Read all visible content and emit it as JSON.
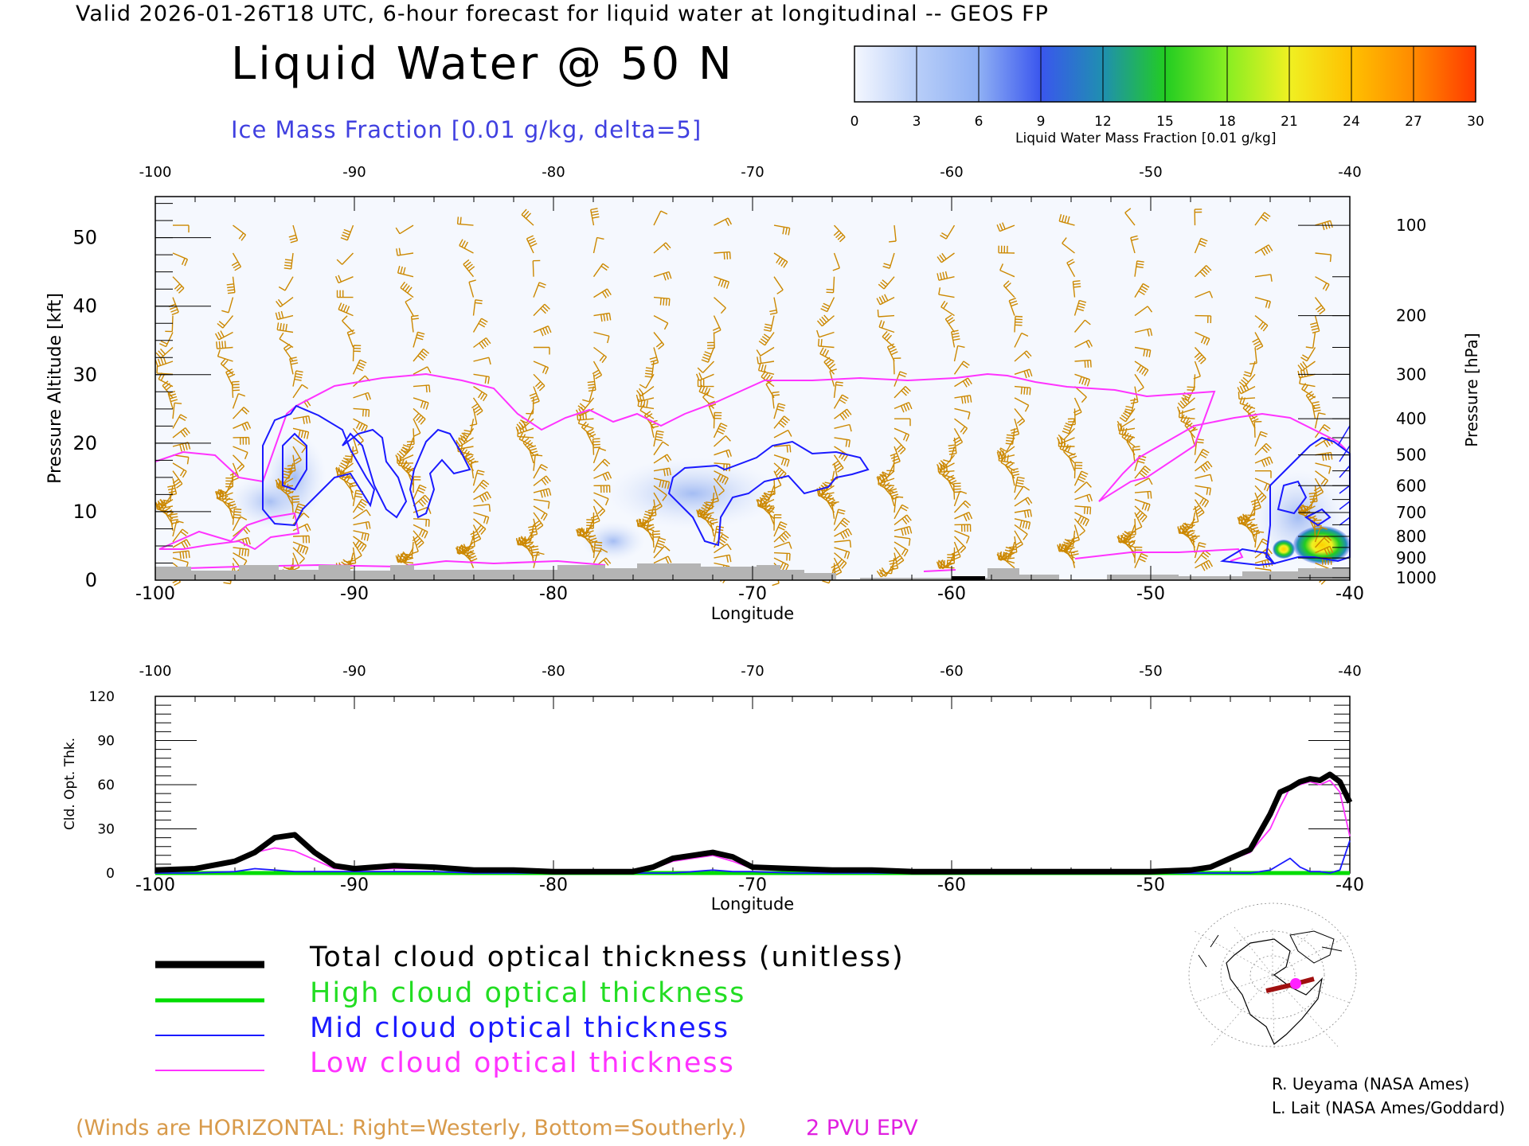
{
  "header": {
    "valid_line": "Valid 2026-01-26T18 UTC, 6-hour forecast for liquid water at longitudinal -- GEOS FP",
    "title": "Liquid Water @ 50 N",
    "subtitle": "Ice Mass Fraction [0.01 g/kg, delta=5]"
  },
  "colorbar": {
    "label": "Liquid Water Mass Fraction [0.01 g/kg]",
    "ticks": [
      "0",
      "3",
      "6",
      "9",
      "12",
      "15",
      "18",
      "21",
      "24",
      "27",
      "30"
    ],
    "colors": [
      "#f4f7ff",
      "#b8cef8",
      "#8fb0f4",
      "#3a56ee",
      "#1f8fb0",
      "#22cc22",
      "#88ee22",
      "#f0f022",
      "#ffc000",
      "#ff8a00",
      "#ff3a00"
    ]
  },
  "chart_data": [
    {
      "type": "heatmap",
      "title": "Liquid Water @ 50 N",
      "xlabel": "Longitude",
      "ylabel": "Pressure Altitude [kft]",
      "ylabel_right": "Pressure [hPa]",
      "xlim": [
        -100,
        -40
      ],
      "ylim": [
        0,
        56
      ],
      "x_ticks": [
        "-100",
        "-90",
        "-80",
        "-70",
        "-60",
        "-50",
        "-40"
      ],
      "y_ticks_left": [
        "0",
        "10",
        "20",
        "30",
        "40",
        "50"
      ],
      "y_ticks_right": [
        "100",
        "200",
        "300",
        "400",
        "500",
        "600",
        "700",
        "800",
        "900",
        "1000"
      ],
      "pressure_levels_hpa": [
        100,
        200,
        300,
        400,
        500,
        600,
        700,
        800,
        900,
        1000
      ],
      "liquid_water_max_region": {
        "lon": [
          -44,
          -40
        ],
        "alt_kft": [
          3,
          8
        ],
        "value_approx": 22
      },
      "ice_contour_color": "#1a1aff",
      "epv_contour_color": "#ff33ff",
      "wind_barb_color": "#cc8800",
      "terrain_color": "#b4b4b4"
    },
    {
      "type": "line",
      "xlabel": "Longitude",
      "ylabel": "Cld. Opt. Thk.",
      "xlim": [
        -100,
        -40
      ],
      "ylim": [
        0,
        120
      ],
      "x_ticks": [
        "-100",
        "-90",
        "-80",
        "-70",
        "-60",
        "-50",
        "-40"
      ],
      "y_ticks": [
        "0",
        "30",
        "60",
        "90",
        "120"
      ],
      "x": [
        -100,
        -98,
        -96,
        -95,
        -94,
        -93,
        -92,
        -91,
        -90,
        -88,
        -86,
        -84,
        -82,
        -80,
        -78,
        -76,
        -75,
        -74,
        -73,
        -72,
        -71,
        -70,
        -68,
        -66,
        -64,
        -62,
        -60,
        -58,
        -56,
        -54,
        -52,
        -50,
        -48,
        -47,
        -46,
        -45,
        -44,
        -43.5,
        -43,
        -42.5,
        -42,
        -41.5,
        -41,
        -40.5,
        -40
      ],
      "series": [
        {
          "name": "Total cloud optical thickness (unitless)",
          "color": "#000000",
          "values": [
            2,
            3,
            8,
            14,
            24,
            26,
            14,
            5,
            3,
            5,
            4,
            2,
            2,
            1,
            1,
            1,
            4,
            10,
            12,
            14,
            11,
            4,
            3,
            2,
            2,
            1,
            1,
            1,
            1,
            1,
            1,
            1,
            2,
            4,
            10,
            16,
            40,
            55,
            58,
            62,
            64,
            63,
            67,
            62,
            48
          ]
        },
        {
          "name": "High cloud optical thickness",
          "color": "#00dd00",
          "values": [
            0,
            0,
            0,
            0,
            0,
            0,
            0,
            0,
            0,
            0,
            0,
            0,
            0,
            0,
            0,
            0,
            0,
            0,
            0,
            0,
            0,
            0,
            0,
            0,
            0,
            0,
            0,
            0,
            0,
            0,
            0,
            0,
            0,
            0,
            0,
            0,
            0,
            0,
            0,
            0,
            0,
            0,
            0,
            0,
            0
          ]
        },
        {
          "name": "Mid cloud optical thickness",
          "color": "#1a1aff",
          "values": [
            0,
            0,
            1,
            3,
            2,
            1,
            1,
            1,
            1,
            1,
            1,
            0,
            0,
            0,
            0,
            0,
            0,
            0,
            1,
            2,
            1,
            1,
            0,
            0,
            0,
            0,
            0,
            0,
            0,
            0,
            0,
            0,
            0,
            0,
            0,
            0,
            2,
            6,
            10,
            4,
            1,
            1,
            0,
            2,
            22
          ]
        },
        {
          "name": "Low cloud optical thickness",
          "color": "#ff33ff",
          "values": [
            2,
            3,
            7,
            14,
            17,
            15,
            9,
            3,
            2,
            3,
            3,
            1,
            1,
            1,
            1,
            1,
            3,
            8,
            10,
            12,
            8,
            3,
            2,
            1,
            1,
            1,
            1,
            1,
            1,
            1,
            1,
            1,
            2,
            4,
            9,
            14,
            30,
            45,
            58,
            60,
            62,
            60,
            63,
            55,
            25
          ]
        }
      ]
    }
  ],
  "legend": {
    "total": "Total cloud optical thickness (unitless)",
    "high": "High cloud optical thickness",
    "mid": "Mid cloud optical thickness",
    "low": "Low cloud optical thickness"
  },
  "notes": {
    "winds": "(Winds are HORIZONTAL: Right=Westerly, Bottom=Southerly.)",
    "epv": "2 PVU EPV"
  },
  "credits": {
    "line1": "R. Ueyama (NASA Ames)",
    "line2": "L. Lait (NASA Ames/Goddard)"
  }
}
